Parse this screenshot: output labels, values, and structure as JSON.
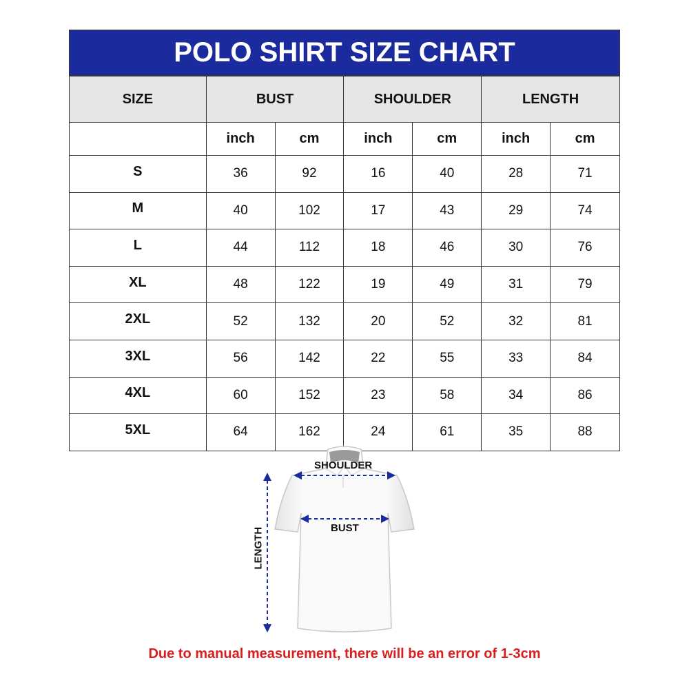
{
  "title": "POLO SHIRT SIZE CHART",
  "headers": {
    "size": "SIZE",
    "bust": "BUST",
    "shoulder": "SHOULDER",
    "length": "LENGTH"
  },
  "units": [
    "inch",
    "cm",
    "inch",
    "cm",
    "inch",
    "cm"
  ],
  "rows": [
    [
      "S",
      "36",
      "92",
      "16",
      "40",
      "28",
      "71"
    ],
    [
      "M",
      "40",
      "102",
      "17",
      "43",
      "29",
      "74"
    ],
    [
      "L",
      "44",
      "112",
      "18",
      "46",
      "30",
      "76"
    ],
    [
      "XL",
      "48",
      "122",
      "19",
      "49",
      "31",
      "79"
    ],
    [
      "2XL",
      "52",
      "132",
      "20",
      "52",
      "32",
      "81"
    ],
    [
      "3XL",
      "56",
      "142",
      "22",
      "55",
      "33",
      "84"
    ],
    [
      "4XL",
      "60",
      "152",
      "23",
      "58",
      "34",
      "86"
    ],
    [
      "5XL",
      "64",
      "162",
      "24",
      "61",
      "35",
      "88"
    ]
  ],
  "diagram": {
    "shoulder": "SHOULDER",
    "bust": "BUST",
    "length": "LENGTH"
  },
  "note": "Due to manual measurement, there will be an error of 1-3cm",
  "colors": {
    "header_bg": "#1b2a9c",
    "note": "#d81e1e",
    "arrow": "#1b2a9c"
  }
}
